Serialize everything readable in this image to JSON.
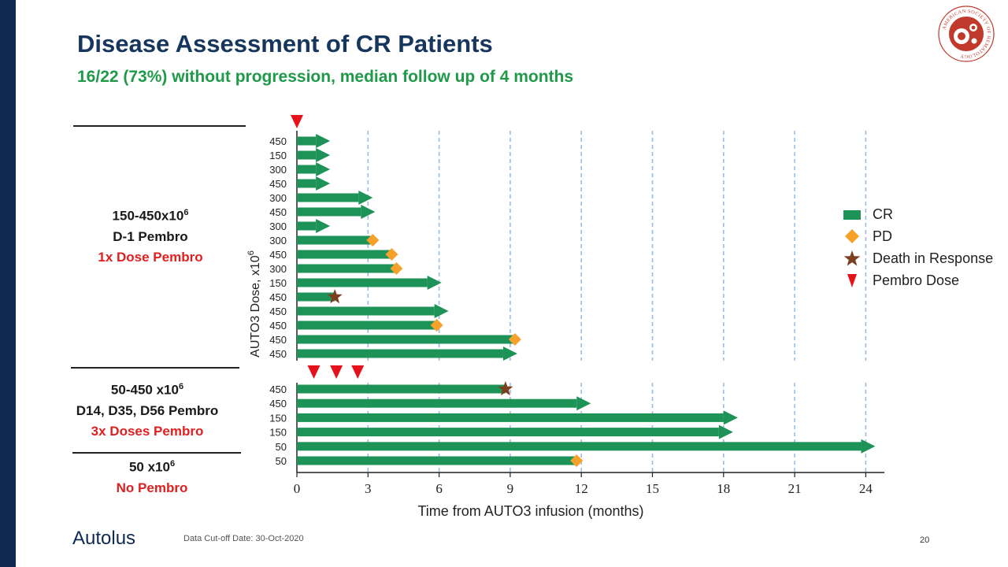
{
  "title": "Disease Assessment of CR Patients",
  "subtitle": "16/22 (73%) without progression, median follow up of 4 months",
  "groups": [
    {
      "line1": "150-450x10",
      "line1_sup": "6",
      "line2": "D-1 Pembro",
      "line3": "1x Dose Pembro"
    },
    {
      "line1": "50-450 x10",
      "line1_sup": "6",
      "line2": "D14, D35, D56 Pembro",
      "line3": "3x Doses Pembro"
    },
    {
      "line1": "50 x10",
      "line1_sup": "6",
      "line2": "",
      "line3": "No Pembro"
    }
  ],
  "legend": [
    {
      "icon": "cr-square-icon",
      "label": "CR",
      "color": "#1e9358"
    },
    {
      "icon": "pd-diamond-icon",
      "label": "PD",
      "color": "#f5a12a"
    },
    {
      "icon": "death-star-icon",
      "label": "Death in Response",
      "color": "#7b3f20"
    },
    {
      "icon": "pembro-triangle-icon",
      "label": "Pembro Dose",
      "color": "#e5121b"
    }
  ],
  "footer": {
    "logo_text": "Autolus",
    "cutoff": "Data Cut-off Date: 30-Oct-2020",
    "page_number": "20"
  },
  "seal_text": "AMERICAN SOCIETY OF HEMATOLOGY",
  "colors": {
    "bar": "#1e9358",
    "pd": "#f5a12a",
    "death": "#7b3f20",
    "pembro": "#e5121b",
    "grid": "#9bbce0",
    "title": "#17365d",
    "subtitle": "#1e9a48"
  },
  "chart_data": {
    "type": "swimmer",
    "xlabel": "Time from AUTO3 infusion (months)",
    "ylabel": "AUTO3 Dose, x10",
    "ylabel_sup": "6",
    "xlim": [
      0,
      24.8
    ],
    "xticks": [
      0,
      3,
      6,
      9,
      12,
      15,
      18,
      21,
      24
    ],
    "pembro_doses_months": [
      {
        "panel": 1,
        "month": 0
      },
      {
        "panel": 2,
        "month": 0.35
      },
      {
        "panel": 2,
        "month": 1.3
      },
      {
        "panel": 2,
        "month": 2.2
      }
    ],
    "panels": [
      {
        "rows": [
          {
            "dose": "450",
            "end": 1.4,
            "ongoing": true,
            "event": null,
            "event_at": null
          },
          {
            "dose": "150",
            "end": 1.4,
            "ongoing": true,
            "event": null,
            "event_at": null
          },
          {
            "dose": "300",
            "end": 1.4,
            "ongoing": true,
            "event": null,
            "event_at": null
          },
          {
            "dose": "450",
            "end": 1.4,
            "ongoing": true,
            "event": null,
            "event_at": null
          },
          {
            "dose": "300",
            "end": 3.2,
            "ongoing": true,
            "event": null,
            "event_at": null
          },
          {
            "dose": "450",
            "end": 3.3,
            "ongoing": true,
            "event": null,
            "event_at": null
          },
          {
            "dose": "300",
            "end": 1.4,
            "ongoing": true,
            "event": null,
            "event_at": null
          },
          {
            "dose": "300",
            "end": 3.2,
            "ongoing": false,
            "event": "PD",
            "event_at": 3.2
          },
          {
            "dose": "450",
            "end": 4.0,
            "ongoing": false,
            "event": "PD",
            "event_at": 4.0
          },
          {
            "dose": "300",
            "end": 4.2,
            "ongoing": false,
            "event": "PD",
            "event_at": 4.2
          },
          {
            "dose": "150",
            "end": 6.1,
            "ongoing": true,
            "event": null,
            "event_at": null
          },
          {
            "dose": "450",
            "end": 1.6,
            "ongoing": false,
            "event": "Death",
            "event_at": 1.6
          },
          {
            "dose": "450",
            "end": 6.4,
            "ongoing": true,
            "event": null,
            "event_at": null
          },
          {
            "dose": "450",
            "end": 5.9,
            "ongoing": false,
            "event": "PD",
            "event_at": 5.9
          },
          {
            "dose": "450",
            "end": 9.2,
            "ongoing": false,
            "event": "PD",
            "event_at": 9.2
          },
          {
            "dose": "450",
            "end": 9.3,
            "ongoing": true,
            "event": null,
            "event_at": null
          }
        ]
      },
      {
        "rows": [
          {
            "dose": "450",
            "end": 8.8,
            "ongoing": false,
            "event": "Death",
            "event_at": 8.8
          },
          {
            "dose": "450",
            "end": 12.4,
            "ongoing": true,
            "event": null,
            "event_at": null
          },
          {
            "dose": "150",
            "end": 18.6,
            "ongoing": true,
            "event": null,
            "event_at": null
          },
          {
            "dose": "150",
            "end": 18.4,
            "ongoing": true,
            "event": null,
            "event_at": null
          },
          {
            "dose": "50",
            "end": 24.4,
            "ongoing": true,
            "event": null,
            "event_at": null
          },
          {
            "dose": "50",
            "end": 11.8,
            "ongoing": false,
            "event": "PD",
            "event_at": 11.8
          }
        ]
      }
    ]
  }
}
